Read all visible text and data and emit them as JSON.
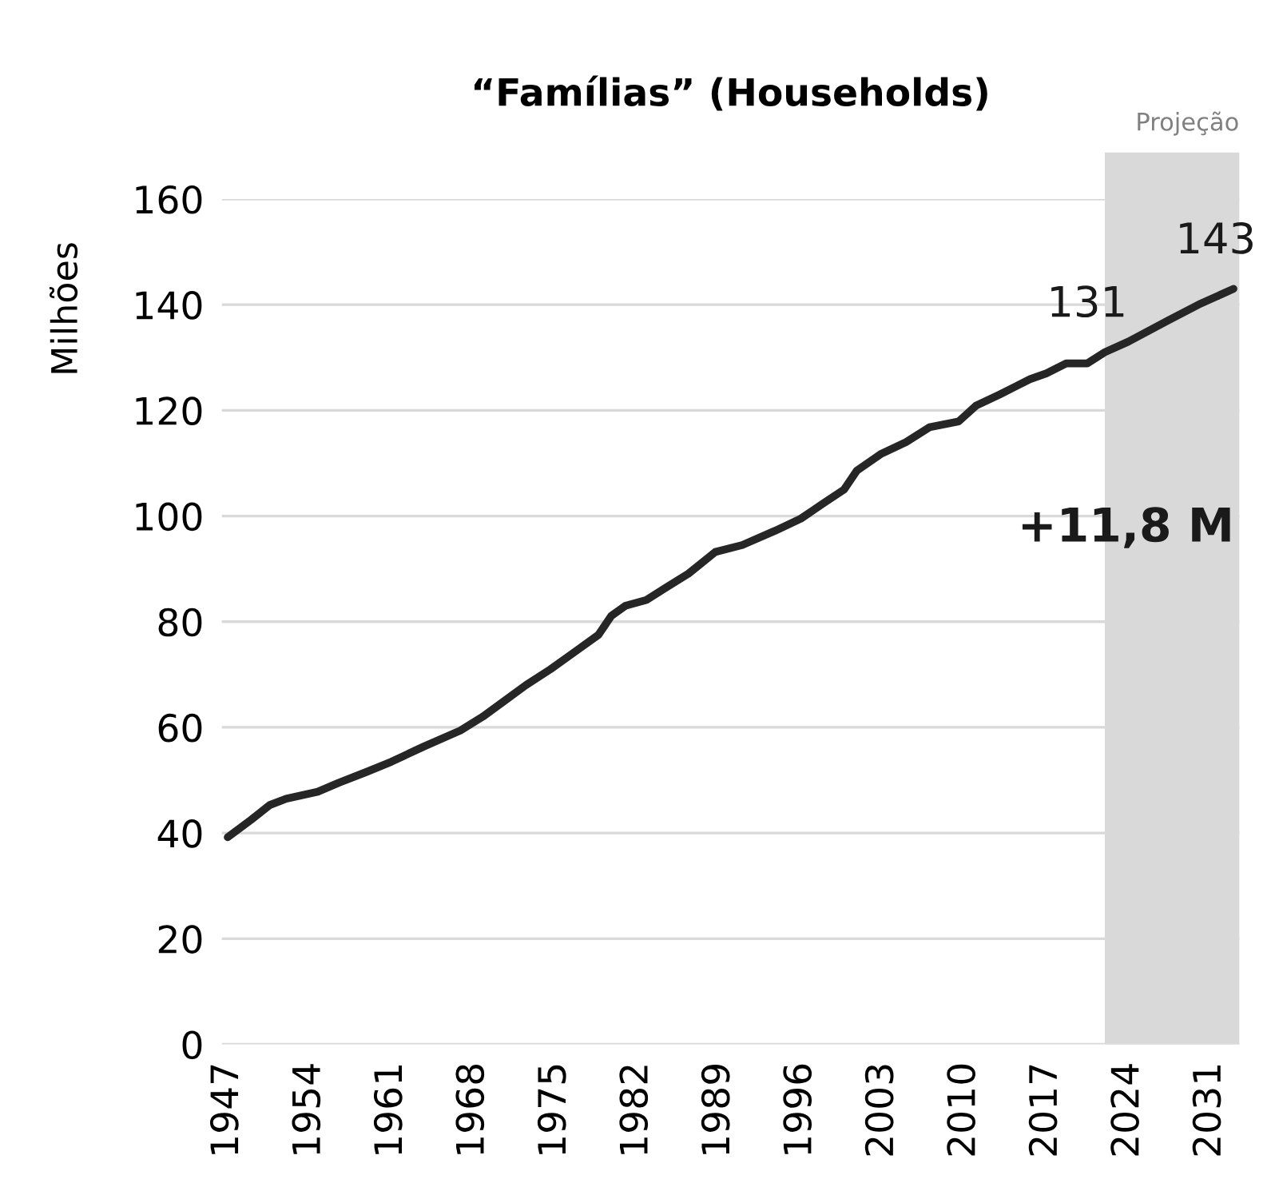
{
  "chart_data": {
    "type": "line",
    "title": "“Famílias” (Households)",
    "ylabel": "Milhões",
    "x": [
      1947,
      1949,
      1950.6,
      1952,
      1954.7,
      1956.5,
      1958.8,
      1961,
      1963.8,
      1966.9,
      1968.8,
      1970.6,
      1972.5,
      1974.6,
      1976.5,
      1978.7,
      1979.8,
      1981,
      1982.8,
      1984.5,
      1986.4,
      1988.7,
      1991,
      1993.8,
      1996,
      1998,
      1999.7,
      2000.8,
      2002.9,
      2005,
      2007,
      2009.5,
      2011,
      2013,
      2015.6,
      2017,
      2018.7,
      2020.5,
      2022,
      2024,
      2027.4,
      2030,
      2033
    ],
    "series": [
      {
        "color": "#262626",
        "values": [
          39.2,
          42.5,
          45.3,
          46.5,
          47.8,
          49.5,
          51.5,
          53.5,
          56.4,
          59.4,
          62,
          64.9,
          68,
          71,
          74,
          77.5,
          81.1,
          83,
          84.1,
          86.5,
          89.1,
          93.2,
          94.5,
          97.2,
          99.5,
          102.5,
          105,
          108.6,
          111.8,
          114,
          116.8,
          117.9,
          120.9,
          123,
          125.9,
          127,
          128.9,
          128.9,
          131,
          133,
          137,
          140,
          143
        ]
      }
    ],
    "xlim": [
      1946.5,
      2033.5
    ],
    "xticks": [
      1947,
      1954,
      1961,
      1968,
      1975,
      1982,
      1989,
      1996,
      2003,
      2010,
      2017,
      2024,
      2031
    ],
    "ylim": [
      0,
      160
    ],
    "yticks": [
      0,
      20,
      40,
      60,
      80,
      100,
      120,
      140,
      160
    ],
    "grid": "y",
    "bands": [
      {
        "axis": "x",
        "from": 2022,
        "to": 2033.5,
        "label": "Projeção",
        "color": "#d9d9d9"
      }
    ],
    "annotations": [
      {
        "text": "131",
        "x": 2022,
        "y": 131
      },
      {
        "text": "143",
        "x": 2033,
        "y": 143
      },
      "+11,8 M"
    ]
  }
}
